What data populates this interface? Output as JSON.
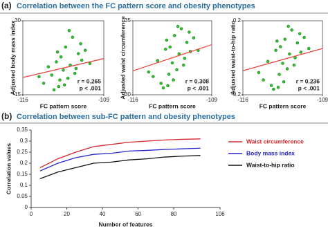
{
  "panels": [
    {
      "label": "(a)",
      "title": "Correlation between the FC pattern score and obesity phenotypes"
    },
    {
      "label": "(b)",
      "title": "Correlation between sub-FC pattern and obesity phenotypes"
    }
  ],
  "chart_data": [
    {
      "type": "scatter",
      "x_label": "FC pattern score",
      "y_label": "Adjusted body mass index",
      "annotations": [
        "r = 0.265",
        "p < .001"
      ],
      "xlim": [
        -116,
        -109
      ],
      "xticks": [
        -116,
        -109
      ],
      "ylim": [
        -15,
        30
      ],
      "yticks": [
        -15,
        30
      ],
      "color": "#2fc42f",
      "x": [
        -114.2,
        -113.8,
        -113.5,
        -113.1,
        -112.9,
        -112.7,
        -112.5,
        -112.3,
        -112.1,
        -111.9,
        -111.7,
        -111.5,
        -111.2,
        -110.9,
        -110.6,
        -113.3,
        -112.0,
        -111.4,
        -112.8,
        -110.2,
        -114.6,
        -111.0,
        -112.4,
        -113.0
      ],
      "values": [
        -8,
        2,
        -3,
        5,
        -10,
        8,
        0,
        14,
        -5,
        3,
        20,
        -2,
        10,
        6,
        12,
        -12,
        24,
        1,
        -6,
        4,
        -4,
        16,
        -9,
        11
      ],
      "fit": {
        "color": "#e8463a",
        "x": [
          -116,
          -109
        ],
        "y": [
          -4.5,
          7
        ]
      }
    },
    {
      "type": "scatter",
      "x_label": "FC pattern score",
      "y_label": "Adjusted waist circumference",
      "annotations": [
        "r = 0.308",
        "p < .001"
      ],
      "xlim": [
        -116,
        -109
      ],
      "xticks": [
        -116,
        -109
      ],
      "ylim": [
        -30,
        35
      ],
      "yticks": [
        -30,
        35
      ],
      "color": "#2fc42f",
      "x": [
        -114.2,
        -113.8,
        -113.5,
        -113.1,
        -112.9,
        -112.7,
        -112.5,
        -112.3,
        -112.1,
        -111.9,
        -111.7,
        -111.5,
        -111.2,
        -110.9,
        -110.6,
        -113.3,
        -112.0,
        -111.4,
        -112.8,
        -110.2,
        -114.6,
        -111.0,
        -112.4,
        -113.0
      ],
      "values": [
        -14,
        0,
        -20,
        10,
        -22,
        12,
        -2,
        22,
        -8,
        6,
        28,
        -4,
        16,
        8,
        20,
        -24,
        30,
        2,
        -12,
        9,
        -10,
        25,
        -17,
        18
      ],
      "fit": {
        "color": "#e8463a",
        "x": [
          -116,
          -109
        ],
        "y": [
          -9,
          14
        ]
      }
    },
    {
      "type": "scatter",
      "x_label": "FC pattern score",
      "y_label": "Adjusted waist-to-hip ratio",
      "annotations": [
        "r = 0.236",
        "p < .001"
      ],
      "xlim": [
        -116,
        -109
      ],
      "xticks": [
        -116,
        -109
      ],
      "ylim": [
        -0.2,
        0.2
      ],
      "yticks": [
        -0.2,
        0.2
      ],
      "color": "#2fc42f",
      "x": [
        -114.2,
        -113.8,
        -113.5,
        -113.1,
        -112.9,
        -112.7,
        -112.5,
        -112.3,
        -112.1,
        -111.9,
        -111.7,
        -111.5,
        -111.2,
        -110.9,
        -110.6,
        -113.3,
        -112.0,
        -111.4,
        -112.8,
        -110.2,
        -114.6,
        -111.0,
        -112.4,
        -113.0
      ],
      "values": [
        -0.12,
        -0.02,
        -0.15,
        0.04,
        -0.16,
        0.06,
        -0.03,
        0.1,
        -0.06,
        0.02,
        0.15,
        -0.04,
        0.08,
        0.03,
        0.11,
        -0.17,
        0.17,
        0.0,
        -0.09,
        0.05,
        -0.08,
        0.13,
        -0.13,
        0.09
      ],
      "fit": {
        "color": "#e8463a",
        "x": [
          -116,
          -109
        ],
        "y": [
          -0.07,
          0.05
        ]
      }
    },
    {
      "type": "line",
      "x_label": "Number of features",
      "y_label": "Correlation values",
      "xlim": [
        0,
        106
      ],
      "xticks": [
        0,
        20,
        40,
        60,
        80,
        106
      ],
      "ylim": [
        0,
        0.35
      ],
      "yticks": [
        0,
        0.05,
        0.1,
        0.15,
        0.2,
        0.25,
        0.3,
        0.35
      ],
      "x": [
        5,
        15,
        25,
        35,
        45,
        55,
        65,
        75,
        85,
        95
      ],
      "series": [
        {
          "name": "Waist circumference",
          "color": "#d7262b",
          "values": [
            0.18,
            0.22,
            0.25,
            0.275,
            0.285,
            0.295,
            0.3,
            0.305,
            0.308,
            0.31
          ]
        },
        {
          "name": "Body mass index",
          "color": "#2424c8",
          "values": [
            0.165,
            0.2,
            0.225,
            0.24,
            0.245,
            0.255,
            0.258,
            0.262,
            0.265,
            0.268
          ]
        },
        {
          "name": "Waist-to-hip ratio",
          "color": "#111111",
          "values": [
            0.13,
            0.16,
            0.18,
            0.2,
            0.205,
            0.215,
            0.22,
            0.228,
            0.232,
            0.235
          ]
        }
      ]
    }
  ]
}
